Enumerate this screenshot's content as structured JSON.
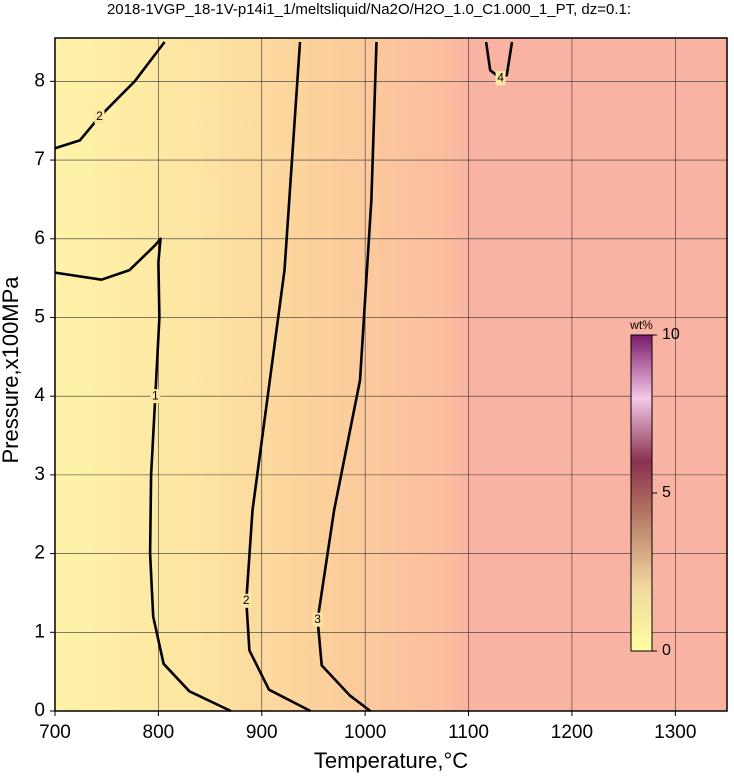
{
  "chart_data": {
    "type": "contour",
    "title": "2018-1VGP_18-1V-p14i1_1/meltsliquid/Na2O/H2O_1.0_C1.000_1_PT, dz=0.1:",
    "x_label": "Temperature,°C",
    "y_label": "Pressure,x100MPa",
    "xlim": [
      700,
      1350
    ],
    "ylim": [
      0,
      8.5
    ],
    "xticks": [
      700,
      800,
      900,
      1000,
      1100,
      1200,
      1300
    ],
    "yticks": [
      0,
      1,
      2,
      3,
      4,
      5,
      6,
      7,
      8
    ],
    "grid": true,
    "contours": [
      {
        "level": 1,
        "x": [
          700,
          745,
          772,
          797,
          802,
          800,
          801,
          797,
          793,
          792,
          795,
          805,
          830,
          870
        ],
        "y": [
          5.57,
          5.48,
          5.6,
          5.92,
          6.0,
          5.7,
          5.0,
          4.0,
          3.0,
          2.0,
          1.2,
          0.6,
          0.25,
          0
        ]
      },
      {
        "level": 2,
        "x": [
          937,
          922,
          891,
          885,
          888,
          907,
          947
        ],
        "y": [
          8.5,
          5.6,
          2.55,
          1.4,
          0.77,
          0.27,
          0
        ]
      },
      {
        "level": 2,
        "x": [
          700,
          724,
          743,
          777,
          806
        ],
        "y": [
          7.15,
          7.25,
          7.55,
          8.0,
          8.5
        ]
      },
      {
        "level": 3,
        "x": [
          1011,
          1006,
          995,
          970,
          954,
          958,
          985,
          1005
        ],
        "y": [
          8.5,
          6.5,
          4.2,
          2.55,
          1.16,
          0.58,
          0.2,
          0
        ]
      },
      {
        "level": 4,
        "x": [
          1117,
          1121,
          1131,
          1137,
          1142
        ],
        "y": [
          8.5,
          8.14,
          8.04,
          8.08,
          8.5
        ]
      }
    ],
    "colorbar": {
      "label": "wt%",
      "lim": [
        0,
        10
      ],
      "ticks": [
        0,
        5,
        10
      ]
    }
  }
}
